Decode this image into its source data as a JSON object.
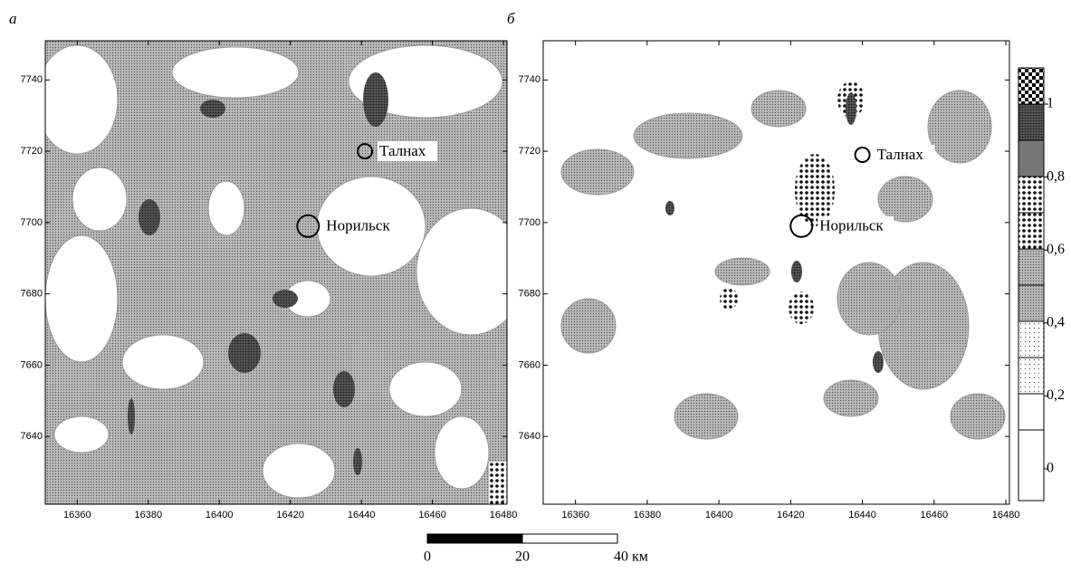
{
  "panels": [
    {
      "label": "а",
      "xlim": [
        16351,
        16481
      ],
      "ylim": [
        7621,
        7751
      ],
      "xticks": [
        16360,
        16380,
        16400,
        16420,
        16440,
        16460,
        16480
      ],
      "yticks": [
        7640,
        7660,
        7680,
        7700,
        7720,
        7740
      ],
      "cities": [
        {
          "name": "Талнах"
        },
        {
          "name": "Норильск"
        }
      ]
    },
    {
      "label": "б",
      "xlim": [
        16351,
        16481
      ],
      "ylim": [
        7621,
        7751
      ],
      "xticks": [
        16360,
        16380,
        16400,
        16420,
        16440,
        16460,
        16480
      ],
      "yticks": [
        7640,
        7660,
        7680,
        7700,
        7720,
        7740
      ],
      "cities": [
        {
          "name": "Талнах"
        },
        {
          "name": "Норильск"
        }
      ]
    }
  ],
  "legend": {
    "ticks": [
      0,
      {
        "value": 0.2,
        "label": "0,2"
      },
      {
        "value": 0.4,
        "label": "0,4"
      },
      {
        "value": 0.6,
        "label": "0,6"
      },
      {
        "value": 0.8,
        "label": "0,8"
      },
      1
    ]
  },
  "scale_bar": {
    "ticks": [
      0,
      20,
      {
        "value": 40,
        "label": "40 км"
      }
    ]
  }
}
